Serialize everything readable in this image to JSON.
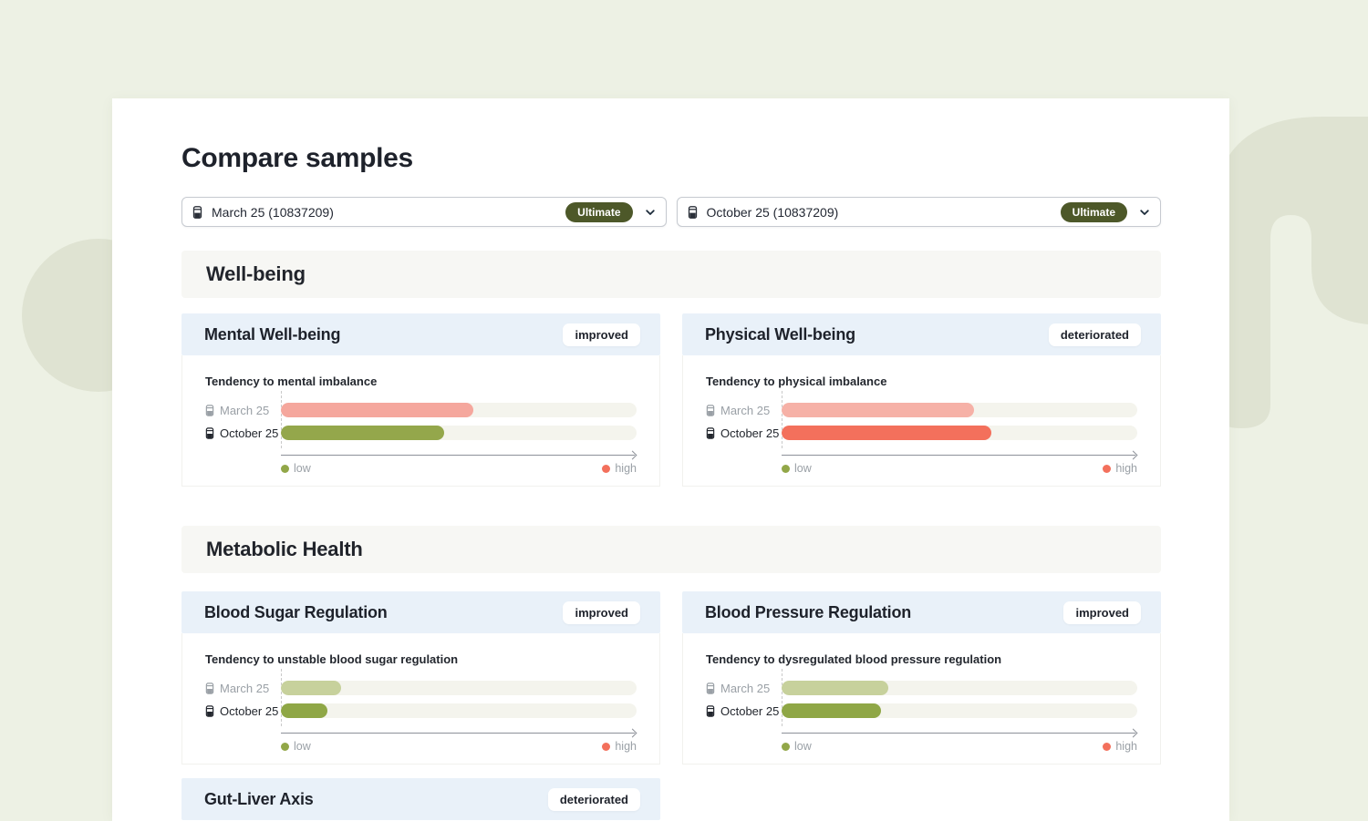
{
  "page": {
    "title": "Compare samples"
  },
  "sample_selectors": [
    {
      "label": "March 25 (10837209)",
      "plan_badge": "Ultimate"
    },
    {
      "label": "October 25 (10837209)",
      "plan_badge": "Ultimate"
    }
  ],
  "legend": {
    "low_label": "low",
    "high_label": "high"
  },
  "colors": {
    "page_bg": "#edf1e4",
    "blob": "#dfe3d2",
    "panel_bg": "#ffffff",
    "section_bg": "#f7f7f4",
    "card_header_bg": "#e9f1f9",
    "plan_badge_bg": "#4d5829",
    "track": "#f4f4ed",
    "axis": "#8d9199",
    "low_dot": "#92a748",
    "high_dot": "#f3705c",
    "text_dark": "#1e222b",
    "text_gray": "#9aa0a6"
  },
  "sections": [
    {
      "title": "Well-being",
      "cards": [
        {
          "title": "Mental Well-being",
          "status": "improved",
          "metric_label": "Tendency to mental imbalance",
          "rows": [
            {
              "label": "March 25",
              "value_pct": 54,
              "bar_color": "#f5a79d",
              "muted": true
            },
            {
              "label": "October 25",
              "value_pct": 46,
              "bar_color": "#94a74b",
              "muted": false
            }
          ]
        },
        {
          "title": "Physical Well-being",
          "status": "deteriorated",
          "metric_label": "Tendency to physical imbalance",
          "rows": [
            {
              "label": "March 25",
              "value_pct": 54,
              "bar_color": "#f6b1a7",
              "muted": true
            },
            {
              "label": "October 25",
              "value_pct": 59,
              "bar_color": "#f3705c",
              "muted": false
            }
          ]
        }
      ]
    },
    {
      "title": "Metabolic Health",
      "cards": [
        {
          "title": "Blood Sugar Regulation",
          "status": "improved",
          "metric_label": "Tendency to unstable blood sugar regulation",
          "rows": [
            {
              "label": "March 25",
              "value_pct": 17,
              "bar_color": "#c7d19c",
              "muted": true
            },
            {
              "label": "October 25",
              "value_pct": 13,
              "bar_color": "#8fa746",
              "muted": false
            }
          ]
        },
        {
          "title": "Blood Pressure Regulation",
          "status": "improved",
          "metric_label": "Tendency to dysregulated blood pressure regulation",
          "rows": [
            {
              "label": "March 25",
              "value_pct": 30,
              "bar_color": "#c7d19c",
              "muted": true
            },
            {
              "label": "October 25",
              "value_pct": 28,
              "bar_color": "#8fa746",
              "muted": false
            }
          ]
        },
        {
          "title": "Gut-Liver Axis",
          "status": "deteriorated",
          "partial": true
        }
      ]
    }
  ]
}
